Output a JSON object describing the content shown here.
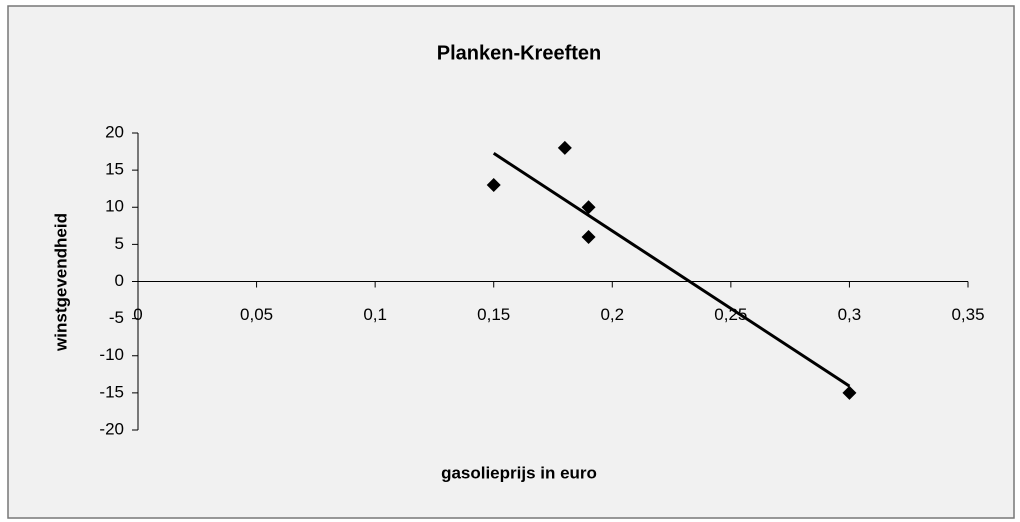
{
  "chart_data": {
    "type": "scatter",
    "title": "Planken-Kreeften",
    "xlabel": "gasolieprijs in euro",
    "ylabel": "winstgevendheid",
    "series": [
      {
        "color": "#000000",
        "x": [
          0.15,
          0.18,
          0.19,
          0.19,
          0.3
        ],
        "values": [
          13,
          18,
          10,
          6,
          -15
        ]
      }
    ],
    "trendline": "linear",
    "xlim": [
      0,
      0.35
    ],
    "xticks": [
      0,
      {
        "value": 0.05,
        "label": "0,05"
      },
      {
        "value": 0.1,
        "label": "0,1"
      },
      {
        "value": 0.15,
        "label": "0,15"
      },
      {
        "value": 0.2,
        "label": "0,2"
      },
      {
        "value": 0.25,
        "label": "0,25"
      },
      {
        "value": 0.3,
        "label": "0,3"
      },
      {
        "value": 0.35,
        "label": "0,35"
      }
    ],
    "ylim": [
      -20,
      20
    ],
    "yticks": [
      -20,
      -15,
      -10,
      -5,
      0,
      5,
      10,
      15,
      20
    ],
    "grid": false
  }
}
